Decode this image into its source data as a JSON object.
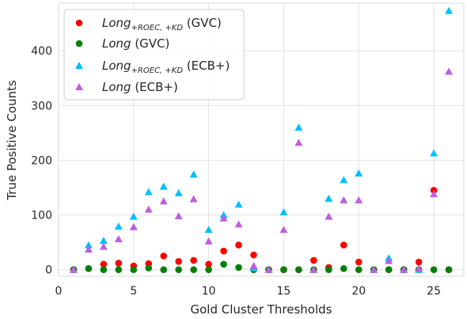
{
  "chart_data": {
    "type": "scatter",
    "xlabel": "Gold Cluster Thresholds",
    "ylabel": "True Positive Counts",
    "xlim": [
      0,
      27
    ],
    "ylim": [
      -12,
      487
    ],
    "xticks": [
      0,
      5,
      10,
      15,
      20,
      25
    ],
    "yticks": [
      0,
      100,
      200,
      300,
      400
    ],
    "grid": true,
    "legend_position": "top-left",
    "series": [
      {
        "label_main": "Long",
        "label_sub": "+ROEC, +KD",
        "label_suffix": "(GVC)",
        "marker": "circle",
        "color": "#ff0000",
        "points": [
          [
            1,
            0
          ],
          [
            2,
            2
          ],
          [
            3,
            10
          ],
          [
            4,
            12
          ],
          [
            5,
            7
          ],
          [
            6,
            11
          ],
          [
            7,
            25
          ],
          [
            8,
            15
          ],
          [
            9,
            17
          ],
          [
            10,
            10
          ],
          [
            11,
            34
          ],
          [
            12,
            45
          ],
          [
            13,
            27
          ],
          [
            14,
            0
          ],
          [
            15,
            0
          ],
          [
            16,
            0
          ],
          [
            17,
            17
          ],
          [
            18,
            4
          ],
          [
            19,
            45
          ],
          [
            20,
            14
          ],
          [
            21,
            0
          ],
          [
            22,
            0
          ],
          [
            23,
            0
          ],
          [
            24,
            14
          ],
          [
            25,
            145
          ],
          [
            26,
            0
          ]
        ]
      },
      {
        "label_main": "Long",
        "label_sub": "",
        "label_suffix": "(GVC)",
        "marker": "circle",
        "color": "#008000",
        "points": [
          [
            1,
            0
          ],
          [
            2,
            2
          ],
          [
            3,
            0
          ],
          [
            4,
            0
          ],
          [
            5,
            0
          ],
          [
            6,
            3
          ],
          [
            7,
            0
          ],
          [
            8,
            0
          ],
          [
            9,
            0
          ],
          [
            10,
            0
          ],
          [
            11,
            10
          ],
          [
            12,
            4
          ],
          [
            13,
            0
          ],
          [
            14,
            0
          ],
          [
            15,
            0
          ],
          [
            16,
            0
          ],
          [
            17,
            0
          ],
          [
            18,
            0
          ],
          [
            19,
            2
          ],
          [
            20,
            0
          ],
          [
            21,
            0
          ],
          [
            22,
            0
          ],
          [
            23,
            0
          ],
          [
            24,
            0
          ],
          [
            25,
            0
          ],
          [
            26,
            0
          ]
        ]
      },
      {
        "label_main": "Long",
        "label_sub": "+ROEC, +KD",
        "label_suffix": "(ECB+)",
        "marker": "triangle",
        "color": "#00bfff",
        "points": [
          [
            1,
            0
          ],
          [
            2,
            45
          ],
          [
            3,
            53
          ],
          [
            4,
            79
          ],
          [
            5,
            97
          ],
          [
            6,
            142
          ],
          [
            7,
            152
          ],
          [
            8,
            140
          ],
          [
            9,
            174
          ],
          [
            10,
            73
          ],
          [
            11,
            100
          ],
          [
            12,
            119
          ],
          [
            13,
            3
          ],
          [
            14,
            0
          ],
          [
            15,
            105
          ],
          [
            16,
            260
          ],
          [
            17,
            0
          ],
          [
            18,
            130
          ],
          [
            19,
            164
          ],
          [
            20,
            176
          ],
          [
            21,
            0
          ],
          [
            22,
            21
          ],
          [
            23,
            0
          ],
          [
            24,
            0
          ],
          [
            25,
            213
          ],
          [
            26,
            473
          ]
        ]
      },
      {
        "label_main": "Long",
        "label_sub": "",
        "label_suffix": "(ECB+)",
        "marker": "triangle",
        "color": "#bf5fdf",
        "points": [
          [
            1,
            0
          ],
          [
            2,
            37
          ],
          [
            3,
            42
          ],
          [
            4,
            56
          ],
          [
            5,
            78
          ],
          [
            6,
            110
          ],
          [
            7,
            125
          ],
          [
            8,
            98
          ],
          [
            9,
            129
          ],
          [
            10,
            52
          ],
          [
            11,
            94
          ],
          [
            12,
            83
          ],
          [
            13,
            7
          ],
          [
            14,
            0
          ],
          [
            15,
            73
          ],
          [
            16,
            232
          ],
          [
            17,
            0
          ],
          [
            18,
            97
          ],
          [
            19,
            127
          ],
          [
            20,
            127
          ],
          [
            21,
            0
          ],
          [
            22,
            16
          ],
          [
            23,
            0
          ],
          [
            24,
            2
          ],
          [
            25,
            138
          ],
          [
            26,
            362
          ]
        ]
      }
    ]
  }
}
